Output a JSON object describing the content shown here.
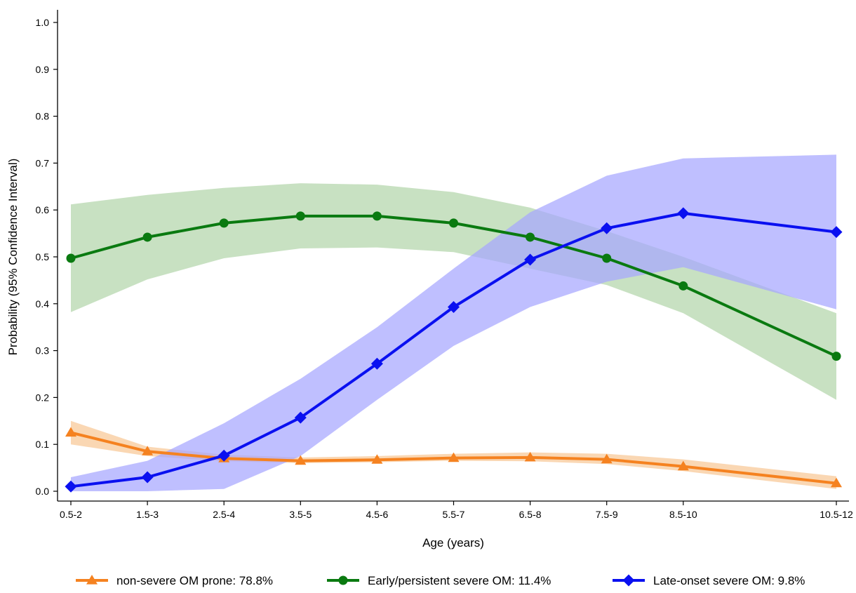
{
  "chart_data": {
    "type": "line",
    "title": "",
    "xlabel": "Age (years)",
    "ylabel": "Probability  (95% Confidence Interval)",
    "categories": [
      "0.5-2",
      "1.5-3",
      "2.5-4",
      "3.5-5",
      "4.5-6",
      "5.5-7",
      "6.5-8",
      "7.5-9",
      "8.5-10",
      "10.5-12"
    ],
    "x_positions": [
      1.25,
      2.25,
      3.25,
      4.25,
      5.25,
      6.25,
      7.25,
      8.25,
      9.25,
      11.25
    ],
    "xlim": [
      1.1,
      11.4
    ],
    "ylim": [
      0,
      1.0
    ],
    "y_ticks": [
      "0.0",
      "0.1",
      "0.2",
      "0.3",
      "0.4",
      "0.5",
      "0.6",
      "0.7",
      "0.8",
      "0.9",
      "1.0"
    ],
    "grid": false,
    "legend_position": "bottom",
    "series": [
      {
        "name": "non-severe OM prone: 78.8%",
        "color": "#f58220",
        "band_color": "#f8c896",
        "marker": "triangle",
        "values": [
          0.125,
          0.085,
          0.07,
          0.065,
          0.067,
          0.071,
          0.072,
          0.068,
          0.053,
          0.017
        ],
        "ci_lower": [
          0.1,
          0.075,
          0.064,
          0.06,
          0.062,
          0.065,
          0.064,
          0.058,
          0.043,
          0.005
        ],
        "ci_upper": [
          0.15,
          0.095,
          0.078,
          0.072,
          0.075,
          0.08,
          0.083,
          0.08,
          0.068,
          0.032
        ]
      },
      {
        "name": "Early/persistent severe OM: 11.4%",
        "color": "#0a7a10",
        "band_color": "#b3d6ab",
        "marker": "circle",
        "values": [
          0.497,
          0.542,
          0.572,
          0.587,
          0.587,
          0.572,
          0.542,
          0.497,
          0.438,
          0.288
        ],
        "ci_lower": [
          0.382,
          0.452,
          0.497,
          0.518,
          0.52,
          0.51,
          0.475,
          0.44,
          0.38,
          0.195
        ],
        "ci_upper": [
          0.612,
          0.632,
          0.647,
          0.657,
          0.654,
          0.638,
          0.605,
          0.555,
          0.5,
          0.38
        ]
      },
      {
        "name": "Late-onset severe OM:  9.8%",
        "color": "#0a10f0",
        "band_color": "#a6a6ff",
        "marker": "diamond",
        "values": [
          0.01,
          0.03,
          0.076,
          0.157,
          0.272,
          0.393,
          0.494,
          0.561,
          0.593,
          0.553
        ],
        "ci_lower": [
          0.0,
          0.0,
          0.005,
          0.075,
          0.195,
          0.31,
          0.393,
          0.447,
          0.478,
          0.388
        ],
        "ci_upper": [
          0.03,
          0.065,
          0.145,
          0.24,
          0.35,
          0.475,
          0.595,
          0.673,
          0.71,
          0.718
        ]
      }
    ]
  }
}
